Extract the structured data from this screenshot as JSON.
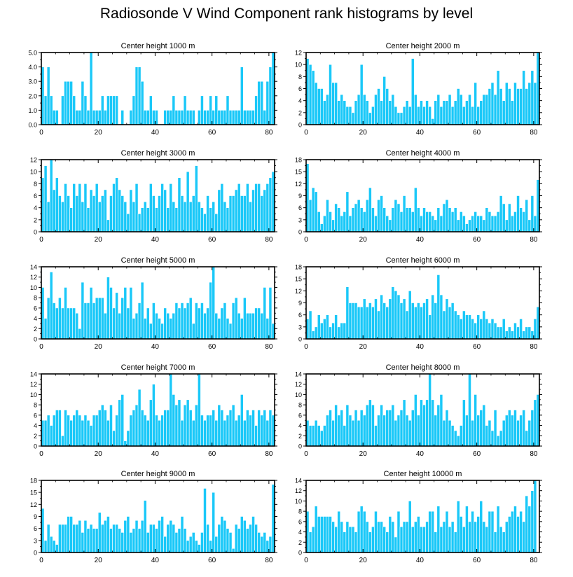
{
  "page": {
    "title": "Radiosonde V Wind Component rank histograms by level"
  },
  "style": {
    "bar_color": "#1AC8F8",
    "bar_edge_color": "#ffffff",
    "axis_color": "#000000"
  },
  "chart_data": [
    {
      "type": "bar",
      "title": "Center height 1000 m",
      "xlim": [
        0,
        82
      ],
      "ylim": [
        0,
        5
      ],
      "xticks": [
        0,
        20,
        40,
        60,
        80
      ],
      "yticks": [
        0,
        1,
        2,
        3,
        4,
        5
      ],
      "ytick_labels": [
        "0.0",
        "1.0",
        "2.0",
        "3.0",
        "4.0",
        "5.0"
      ],
      "values": [
        4,
        2,
        4,
        2,
        1,
        1,
        0,
        2,
        3,
        3,
        3,
        2,
        1,
        1,
        3,
        2,
        1,
        5,
        1,
        1,
        1,
        2,
        1,
        2,
        2,
        2,
        2,
        0,
        1,
        0,
        0,
        1,
        2,
        4,
        4,
        3,
        1,
        1,
        2,
        1,
        1,
        0,
        0,
        1,
        1,
        1,
        2,
        1,
        1,
        1,
        2,
        1,
        1,
        1,
        0,
        1,
        2,
        1,
        1,
        2,
        1,
        2,
        1,
        1,
        1,
        2,
        1,
        1,
        1,
        1,
        4,
        1,
        1,
        1,
        1,
        2,
        3,
        3,
        1,
        3,
        4,
        5
      ]
    },
    {
      "type": "bar",
      "title": "Center height 2000 m",
      "xlim": [
        0,
        82
      ],
      "ylim": [
        0,
        12
      ],
      "xticks": [
        0,
        20,
        40,
        60,
        80
      ],
      "yticks": [
        0,
        2,
        4,
        6,
        8,
        10,
        12
      ],
      "ytick_labels": [
        "0",
        "2",
        "4",
        "6",
        "8",
        "10",
        "12"
      ],
      "values": [
        11,
        10,
        9,
        7,
        6,
        6,
        4,
        5,
        10,
        7,
        7,
        4,
        5,
        4,
        3,
        3,
        2,
        4,
        5,
        10,
        5,
        4,
        2,
        3,
        5,
        6,
        4,
        8,
        6,
        4,
        5,
        3,
        2,
        2,
        3,
        4,
        3,
        11,
        5,
        3,
        4,
        3,
        4,
        3,
        1,
        4,
        5,
        3,
        4,
        4,
        5,
        3,
        4,
        6,
        5,
        3,
        4,
        5,
        3,
        7,
        3,
        4,
        5,
        5,
        6,
        7,
        5,
        9,
        6,
        4,
        7,
        6,
        4,
        7,
        6,
        6,
        9,
        6,
        7,
        9,
        7,
        12
      ]
    },
    {
      "type": "bar",
      "title": "Center height 3000 m",
      "xlim": [
        0,
        82
      ],
      "ylim": [
        0,
        12
      ],
      "xticks": [
        0,
        20,
        40,
        60,
        80
      ],
      "yticks": [
        0,
        2,
        4,
        6,
        8,
        10,
        12
      ],
      "ytick_labels": [
        "0",
        "2",
        "4",
        "6",
        "8",
        "10",
        "12"
      ],
      "values": [
        9,
        11,
        5,
        12,
        7,
        9,
        6,
        5,
        8,
        6,
        4,
        8,
        6,
        8,
        5,
        8,
        4,
        7,
        6,
        8,
        5,
        6,
        7,
        2,
        6,
        8,
        9,
        7,
        6,
        5,
        3,
        7,
        5,
        8,
        3,
        4,
        5,
        4,
        8,
        6,
        4,
        6,
        8,
        7,
        4,
        8,
        5,
        4,
        9,
        6,
        5,
        10,
        5,
        6,
        11,
        5,
        4,
        3,
        6,
        4,
        5,
        3,
        7,
        8,
        5,
        4,
        6,
        6,
        7,
        8,
        6,
        6,
        8,
        5,
        7,
        8,
        8,
        6,
        7,
        8,
        9,
        10
      ]
    },
    {
      "type": "bar",
      "title": "Center height 4000 m",
      "xlim": [
        0,
        82
      ],
      "ylim": [
        0,
        18
      ],
      "xticks": [
        0,
        20,
        40,
        60,
        80
      ],
      "yticks": [
        0,
        3,
        6,
        9,
        12,
        15,
        18
      ],
      "ytick_labels": [
        "0",
        "3",
        "6",
        "9",
        "12",
        "15",
        "18"
      ],
      "values": [
        17,
        8,
        11,
        10,
        5,
        2,
        4,
        8,
        5,
        3,
        7,
        6,
        4,
        5,
        10,
        4,
        6,
        7,
        8,
        6,
        5,
        8,
        11,
        6,
        4,
        8,
        9,
        6,
        4,
        3,
        6,
        8,
        7,
        5,
        9,
        6,
        6,
        5,
        11,
        6,
        4,
        6,
        5,
        5,
        4,
        3,
        6,
        4,
        7,
        8,
        6,
        5,
        6,
        3,
        5,
        4,
        2,
        3,
        4,
        5,
        4,
        4,
        3,
        6,
        5,
        4,
        4,
        5,
        9,
        7,
        3,
        7,
        4,
        5,
        9,
        6,
        5,
        8,
        3,
        9,
        4,
        13
      ]
    },
    {
      "type": "bar",
      "title": "Center height 5000 m",
      "xlim": [
        0,
        82
      ],
      "ylim": [
        0,
        14
      ],
      "xticks": [
        0,
        20,
        40,
        60,
        80
      ],
      "yticks": [
        0,
        2,
        4,
        6,
        8,
        10,
        12,
        14
      ],
      "ytick_labels": [
        "0",
        "2",
        "4",
        "6",
        "8",
        "10",
        "12",
        "14"
      ],
      "values": [
        10,
        4,
        8,
        13,
        7,
        6,
        8,
        6,
        10,
        6,
        6,
        6,
        5,
        2,
        11,
        7,
        7,
        10,
        7,
        8,
        8,
        8,
        5,
        12,
        10,
        6,
        9,
        5,
        8,
        10,
        6,
        10,
        4,
        5,
        7,
        11,
        4,
        6,
        3,
        7,
        5,
        4,
        3,
        6,
        5,
        4,
        5,
        7,
        6,
        7,
        6,
        7,
        8,
        3,
        7,
        6,
        7,
        5,
        6,
        11,
        14,
        5,
        4,
        6,
        7,
        4,
        3,
        7,
        8,
        5,
        4,
        8,
        5,
        5,
        5,
        6,
        6,
        5,
        10,
        4,
        10,
        3
      ]
    },
    {
      "type": "bar",
      "title": "Center height 6000 m",
      "xlim": [
        0,
        82
      ],
      "ylim": [
        0,
        18
      ],
      "xticks": [
        0,
        20,
        40,
        60,
        80
      ],
      "yticks": [
        0,
        3,
        6,
        9,
        12,
        15,
        18
      ],
      "ytick_labels": [
        "0",
        "3",
        "6",
        "9",
        "12",
        "15",
        "18"
      ],
      "values": [
        5,
        7,
        2,
        3,
        6,
        4,
        5,
        6,
        3,
        4,
        6,
        3,
        4,
        4,
        13,
        9,
        9,
        9,
        8,
        8,
        10,
        8,
        9,
        8,
        10,
        7,
        11,
        9,
        8,
        10,
        13,
        12,
        11,
        9,
        10,
        7,
        12,
        9,
        8,
        9,
        8,
        9,
        10,
        6,
        11,
        9,
        16,
        11,
        7,
        10,
        8,
        9,
        7,
        6,
        5,
        7,
        6,
        6,
        5,
        4,
        6,
        5,
        7,
        5,
        4,
        5,
        4,
        3,
        3,
        5,
        2,
        3,
        2,
        4,
        3,
        5,
        2,
        3,
        3,
        2,
        5,
        8
      ]
    },
    {
      "type": "bar",
      "title": "Center height 7000 m",
      "xlim": [
        0,
        82
      ],
      "ylim": [
        0,
        14
      ],
      "xticks": [
        0,
        20,
        40,
        60,
        80
      ],
      "yticks": [
        0,
        2,
        4,
        6,
        8,
        10,
        12,
        14
      ],
      "ytick_labels": [
        "0",
        "2",
        "4",
        "6",
        "8",
        "10",
        "12",
        "14"
      ],
      "values": [
        5,
        5,
        6,
        4,
        6,
        7,
        7,
        2,
        7,
        6,
        5,
        6,
        7,
        6,
        5,
        6,
        5,
        4,
        6,
        6,
        7,
        8,
        7,
        5,
        8,
        3,
        6,
        9,
        10,
        1,
        3,
        6,
        7,
        8,
        11,
        7,
        6,
        5,
        9,
        12,
        6,
        5,
        6,
        7,
        7,
        14,
        10,
        8,
        9,
        5,
        8,
        9,
        7,
        5,
        8,
        14,
        6,
        5,
        6,
        6,
        7,
        5,
        8,
        7,
        5,
        6,
        7,
        8,
        5,
        6,
        10,
        5,
        7,
        6,
        7,
        4,
        7,
        6,
        7,
        5,
        7,
        6
      ]
    },
    {
      "type": "bar",
      "title": "Center height 8000 m",
      "xlim": [
        0,
        82
      ],
      "ylim": [
        0,
        14
      ],
      "xticks": [
        0,
        20,
        40,
        60,
        80
      ],
      "yticks": [
        0,
        2,
        4,
        6,
        8,
        10,
        12,
        14
      ],
      "ytick_labels": [
        "0",
        "2",
        "4",
        "6",
        "8",
        "10",
        "12",
        "14"
      ],
      "values": [
        5,
        4,
        4,
        5,
        4,
        3,
        4,
        6,
        7,
        5,
        8,
        6,
        7,
        4,
        8,
        6,
        5,
        7,
        5,
        7,
        6,
        8,
        9,
        8,
        4,
        6,
        8,
        6,
        7,
        7,
        8,
        5,
        6,
        7,
        9,
        6,
        5,
        7,
        10,
        6,
        9,
        8,
        9,
        14,
        9,
        6,
        8,
        10,
        5,
        7,
        5,
        4,
        3,
        2,
        4,
        9,
        6,
        14,
        5,
        10,
        6,
        7,
        8,
        4,
        5,
        3,
        7,
        2,
        3,
        5,
        6,
        7,
        6,
        7,
        5,
        6,
        7,
        3,
        5,
        7,
        9,
        10
      ]
    },
    {
      "type": "bar",
      "title": "Center height 9000 m",
      "xlim": [
        0,
        82
      ],
      "ylim": [
        0,
        18
      ],
      "xticks": [
        0,
        20,
        40,
        60,
        80
      ],
      "yticks": [
        0,
        3,
        6,
        9,
        12,
        15,
        18
      ],
      "ytick_labels": [
        "0",
        "3",
        "6",
        "9",
        "12",
        "15",
        "18"
      ],
      "values": [
        11,
        3,
        7,
        4,
        3,
        2,
        7,
        7,
        7,
        9,
        9,
        7,
        7,
        8,
        5,
        8,
        6,
        7,
        6,
        6,
        10,
        7,
        8,
        9,
        6,
        7,
        7,
        6,
        5,
        8,
        9,
        5,
        6,
        8,
        6,
        8,
        13,
        5,
        7,
        7,
        6,
        8,
        9,
        4,
        7,
        8,
        7,
        5,
        6,
        9,
        6,
        3,
        4,
        5,
        3,
        2,
        5,
        16,
        7,
        3,
        15,
        4,
        7,
        9,
        8,
        6,
        5,
        1,
        7,
        6,
        9,
        8,
        6,
        7,
        9,
        7,
        5,
        4,
        5,
        3,
        4,
        17
      ]
    },
    {
      "type": "bar",
      "title": "Center height 10000 m",
      "xlim": [
        0,
        82
      ],
      "ylim": [
        0,
        14
      ],
      "xticks": [
        0,
        20,
        40,
        60,
        80
      ],
      "yticks": [
        0,
        2,
        4,
        6,
        8,
        10,
        12,
        14
      ],
      "ytick_labels": [
        "0",
        "2",
        "4",
        "6",
        "8",
        "10",
        "12",
        "14"
      ],
      "values": [
        8,
        4,
        5,
        9,
        7,
        7,
        7,
        7,
        7,
        6,
        5,
        8,
        6,
        4,
        6,
        5,
        5,
        4,
        8,
        9,
        8,
        6,
        4,
        5,
        8,
        6,
        6,
        5,
        4,
        7,
        6,
        3,
        8,
        5,
        6,
        6,
        10,
        5,
        6,
        7,
        5,
        5,
        6,
        8,
        8,
        4,
        9,
        5,
        6,
        8,
        5,
        6,
        4,
        10,
        7,
        5,
        9,
        6,
        8,
        6,
        7,
        10,
        6,
        5,
        8,
        8,
        4,
        9,
        5,
        4,
        6,
        7,
        8,
        9,
        7,
        8,
        6,
        11,
        9,
        12,
        14
      ]
    }
  ]
}
